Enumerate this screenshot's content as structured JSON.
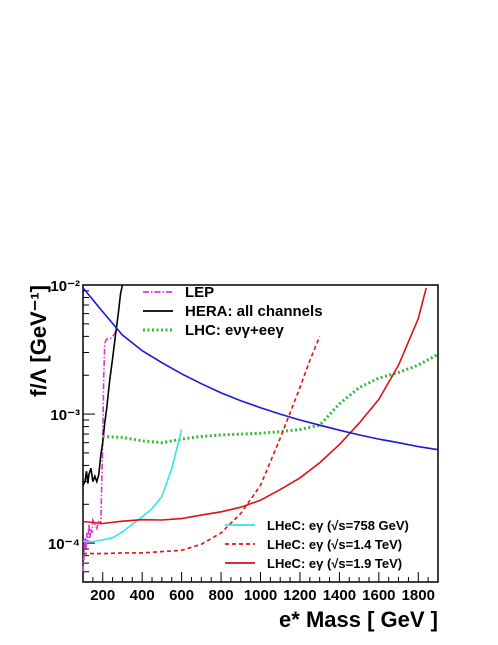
{
  "chart_data": {
    "type": "line",
    "title": "",
    "xlabel": "e* Mass [ GeV ]",
    "ylabel": "f/Λ [GeV⁻¹]",
    "xlim": [
      100,
      1900
    ],
    "ylim": [
      5e-05,
      0.01
    ],
    "yscale": "log",
    "grid": false,
    "x_ticks": [
      200,
      400,
      600,
      800,
      1000,
      1200,
      1400,
      1600,
      1800
    ],
    "x_tick_labels": [
      "200",
      "400",
      "600",
      "800",
      "1000",
      "1200",
      "1400",
      "1600",
      "1800"
    ],
    "y_ticks": [
      0.0001,
      0.001,
      0.01
    ],
    "y_tick_labels": [
      "10⁻⁴",
      "10⁻³",
      "10⁻²"
    ],
    "legend_top": {
      "placement": "top-left",
      "entries": [
        {
          "label": "LEP",
          "series": "lep"
        },
        {
          "label": "HERA: all channels",
          "series": "hera"
        },
        {
          "label": "LHC: eνγ+eeγ",
          "series": "lhc"
        }
      ]
    },
    "legend_bottom": {
      "placement": "bottom-right",
      "entries": [
        {
          "label": "LHeC: eγ (√s=758 GeV)",
          "series": "lhec758"
        },
        {
          "label": "LHeC: eγ (√s=1.4 TeV)",
          "series": "lhec14"
        },
        {
          "label": "LHeC: eγ (√s=1.9 TeV)",
          "series": "lhec19"
        }
      ]
    },
    "series": [
      {
        "id": "lep",
        "color": "#dd33dd",
        "style": "dash-dot",
        "x": [
          100,
          105,
          110,
          115,
          120,
          125,
          130,
          135,
          140,
          145,
          150,
          160,
          170,
          180,
          190,
          200,
          205,
          210,
          215,
          220,
          230,
          245,
          260,
          275
        ],
        "y": [
          6e-05,
          8e-05,
          0.00011,
          9e-05,
          0.00012,
          0.0001,
          0.00014,
          0.00011,
          0.00013,
          0.00012,
          0.00015,
          0.00014,
          0.00013,
          0.00015,
          0.00014,
          0.0006,
          0.0019,
          0.0035,
          0.0037,
          0.0038,
          0.0038,
          0.0039,
          0.0042,
          0.0048
        ]
      },
      {
        "id": "hera",
        "color": "#000000",
        "style": "solid",
        "x": [
          100,
          110,
          118,
          125,
          130,
          140,
          150,
          160,
          170,
          180,
          190,
          200,
          210,
          220,
          235,
          250,
          265,
          280,
          290,
          300
        ],
        "y": [
          0.00028,
          0.0003,
          0.00036,
          0.00029,
          0.00034,
          0.00038,
          0.0003,
          0.00033,
          0.0003,
          0.00034,
          0.00048,
          0.0006,
          0.00085,
          0.0011,
          0.0018,
          0.0027,
          0.0041,
          0.0062,
          0.0085,
          0.01
        ]
      },
      {
        "id": "lhc",
        "color": "#33bb33",
        "style": "dotted",
        "x": [
          200,
          300,
          400,
          500,
          600,
          700,
          800,
          900,
          1000,
          1100,
          1200,
          1300,
          1400,
          1500,
          1600,
          1700,
          1800,
          1900
        ],
        "y": [
          0.00067,
          0.00066,
          0.00062,
          0.0006,
          0.00064,
          0.00067,
          0.00069,
          0.0007,
          0.00071,
          0.00073,
          0.00076,
          0.00082,
          0.0012,
          0.0016,
          0.0019,
          0.0021,
          0.0024,
          0.0029
        ]
      },
      {
        "id": "lhec758",
        "color": "#33e5e5",
        "style": "solid",
        "x": [
          100,
          150,
          200,
          250,
          300,
          350,
          400,
          450,
          500,
          550,
          600
        ],
        "y": [
          0.000103,
          0.000103,
          0.000106,
          0.00011,
          0.000122,
          0.00014,
          0.00016,
          0.000185,
          0.00023,
          0.00038,
          0.00076
        ]
      },
      {
        "id": "lhec14",
        "color": "#dd1111",
        "style": "dashed",
        "x": [
          100,
          200,
          300,
          400,
          500,
          600,
          700,
          800,
          900,
          1000,
          1100,
          1200,
          1250,
          1300
        ],
        "y": [
          8.3e-05,
          8.3e-05,
          8.4e-05,
          8.4e-05,
          8.6e-05,
          8.8e-05,
          9.8e-05,
          0.00012,
          0.00017,
          0.00028,
          0.00065,
          0.0016,
          0.0026,
          0.004
        ]
      },
      {
        "id": "lhec19",
        "color": "#dd1111",
        "style": "solid",
        "x": [
          100,
          200,
          300,
          400,
          500,
          600,
          700,
          800,
          900,
          1000,
          1100,
          1200,
          1300,
          1400,
          1500,
          1600,
          1700,
          1800,
          1840
        ],
        "y": [
          0.000147,
          0.000142,
          0.000148,
          0.000152,
          0.000151,
          0.000155,
          0.000165,
          0.000175,
          0.00019,
          0.000215,
          0.00026,
          0.00032,
          0.00042,
          0.00058,
          0.00085,
          0.0013,
          0.0024,
          0.0055,
          0.0095
        ]
      },
      {
        "id": "blue",
        "color": "#1a1adb",
        "style": "solid",
        "x": [
          100,
          200,
          300,
          400,
          500,
          600,
          700,
          800,
          900,
          1000,
          1100,
          1200,
          1300,
          1400,
          1500,
          1600,
          1700,
          1800,
          1900
        ],
        "y": [
          0.0095,
          0.0062,
          0.0041,
          0.0031,
          0.0025,
          0.00205,
          0.00172,
          0.00146,
          0.00127,
          0.00112,
          0.001,
          0.0009,
          0.00082,
          0.00075,
          0.00069,
          0.00064,
          0.0006,
          0.00056,
          0.00053
        ]
      }
    ]
  }
}
